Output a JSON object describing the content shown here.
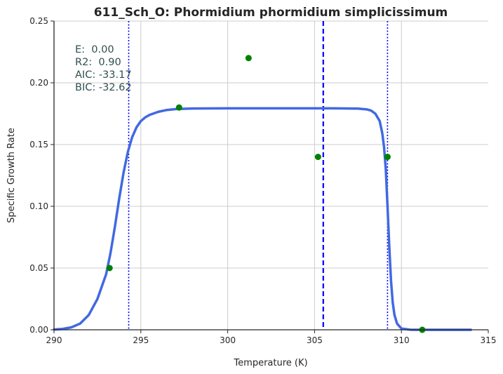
{
  "chart_data": {
    "type": "line",
    "title": "611_Sch_O: Phormidium phormidium simplicissimum",
    "xlabel": "Temperature (K)",
    "ylabel": "Specific Growth Rate",
    "xlim": [
      290,
      315
    ],
    "ylim": [
      0,
      0.25
    ],
    "xticks": [
      "290",
      "295",
      "300",
      "305",
      "310",
      "315"
    ],
    "yticks": [
      "0.00",
      "0.05",
      "0.10",
      "0.15",
      "0.20",
      "0.25"
    ],
    "grid": true,
    "observations": {
      "color": "#008000",
      "x": [
        293.2,
        297.2,
        301.2,
        305.2,
        309.2,
        311.2
      ],
      "y": [
        0.05,
        0.18,
        0.22,
        0.14,
        0.14,
        0.0
      ]
    },
    "fit_curve": {
      "color": "#4169e1",
      "x": [
        290,
        290.5,
        291,
        291.5,
        292,
        292.5,
        293,
        293.25,
        293.5,
        293.75,
        294,
        294.25,
        294.5,
        294.75,
        295,
        295.25,
        295.5,
        296,
        296.5,
        297,
        297.5,
        298,
        300,
        302,
        304,
        306,
        307,
        307.5,
        308,
        308.25,
        308.5,
        308.75,
        308.9,
        309,
        309.1,
        309.2,
        309.3,
        309.4,
        309.5,
        309.6,
        309.75,
        310,
        310.5,
        311,
        312,
        313,
        314
      ],
      "y": [
        0.0002,
        0.0007,
        0.002,
        0.005,
        0.012,
        0.025,
        0.045,
        0.062,
        0.083,
        0.106,
        0.127,
        0.144,
        0.156,
        0.164,
        0.169,
        0.172,
        0.174,
        0.1765,
        0.178,
        0.1787,
        0.179,
        0.1792,
        0.1793,
        0.1793,
        0.1793,
        0.1793,
        0.1792,
        0.1791,
        0.1785,
        0.1775,
        0.175,
        0.169,
        0.159,
        0.148,
        0.13,
        0.1,
        0.068,
        0.04,
        0.022,
        0.012,
        0.005,
        0.001,
        0.0001,
        0.0,
        0.0,
        0.0,
        0.0
      ]
    },
    "vertical_lines": [
      {
        "x": 294.3,
        "style": "dotted",
        "color": "#0000ff"
      },
      {
        "x": 305.5,
        "style": "dashed",
        "color": "#0000ff"
      },
      {
        "x": 309.2,
        "style": "dotted",
        "color": "#0000ff"
      }
    ],
    "stats": {
      "e_label": "E:  0.00",
      "r2_label": "R2:  0.90",
      "aic_label": "AIC: -33.17",
      "bic_label": "BIC: -32.62"
    }
  }
}
